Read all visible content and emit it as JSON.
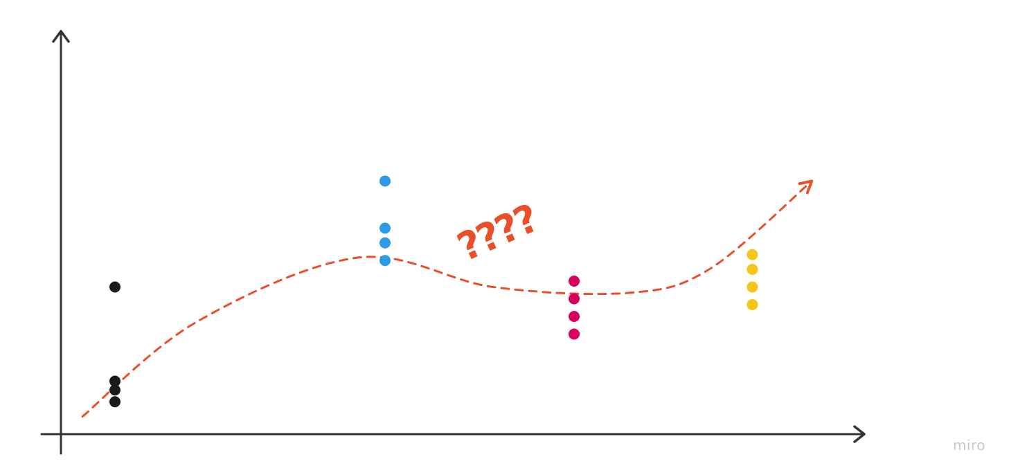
{
  "chart_data": {
    "type": "scatter",
    "xlabel": "",
    "ylabel": "",
    "grid": false,
    "legend": "none",
    "xlim": [
      0,
      14.5
    ],
    "ylim": [
      0,
      7.4
    ],
    "series": [
      {
        "color": "#1a1a1a",
        "points": [
          [
            1,
            2.5
          ],
          [
            1,
            0.9
          ],
          [
            1,
            0.75
          ],
          [
            1,
            0.55
          ]
        ]
      },
      {
        "color": "#2d9ae8",
        "points": [
          [
            6,
            4.3
          ],
          [
            6,
            3.5
          ],
          [
            6,
            3.25
          ],
          [
            6,
            2.95
          ]
        ]
      },
      {
        "color": "#d6005f",
        "points": [
          [
            9.5,
            2.6
          ],
          [
            9.5,
            2.3
          ],
          [
            9.5,
            2.0
          ],
          [
            9.5,
            1.7
          ]
        ]
      },
      {
        "color": "#f5c518",
        "points": [
          [
            12.8,
            3.05
          ],
          [
            12.8,
            2.8
          ],
          [
            12.8,
            2.5
          ],
          [
            12.8,
            2.2
          ]
        ]
      }
    ],
    "trend": {
      "color": "#e8502b",
      "style": "dashed",
      "points": [
        [
          0.4,
          0.3
        ],
        [
          2.5,
          1.9
        ],
        [
          5.5,
          3.0
        ],
        [
          8.0,
          2.5
        ],
        [
          10.5,
          2.4
        ],
        [
          12.0,
          2.8
        ],
        [
          13.9,
          4.3
        ]
      ]
    },
    "annotation": {
      "text": "????",
      "color": "#e8502b"
    }
  },
  "axis_color": "#333333",
  "watermark": "miro"
}
